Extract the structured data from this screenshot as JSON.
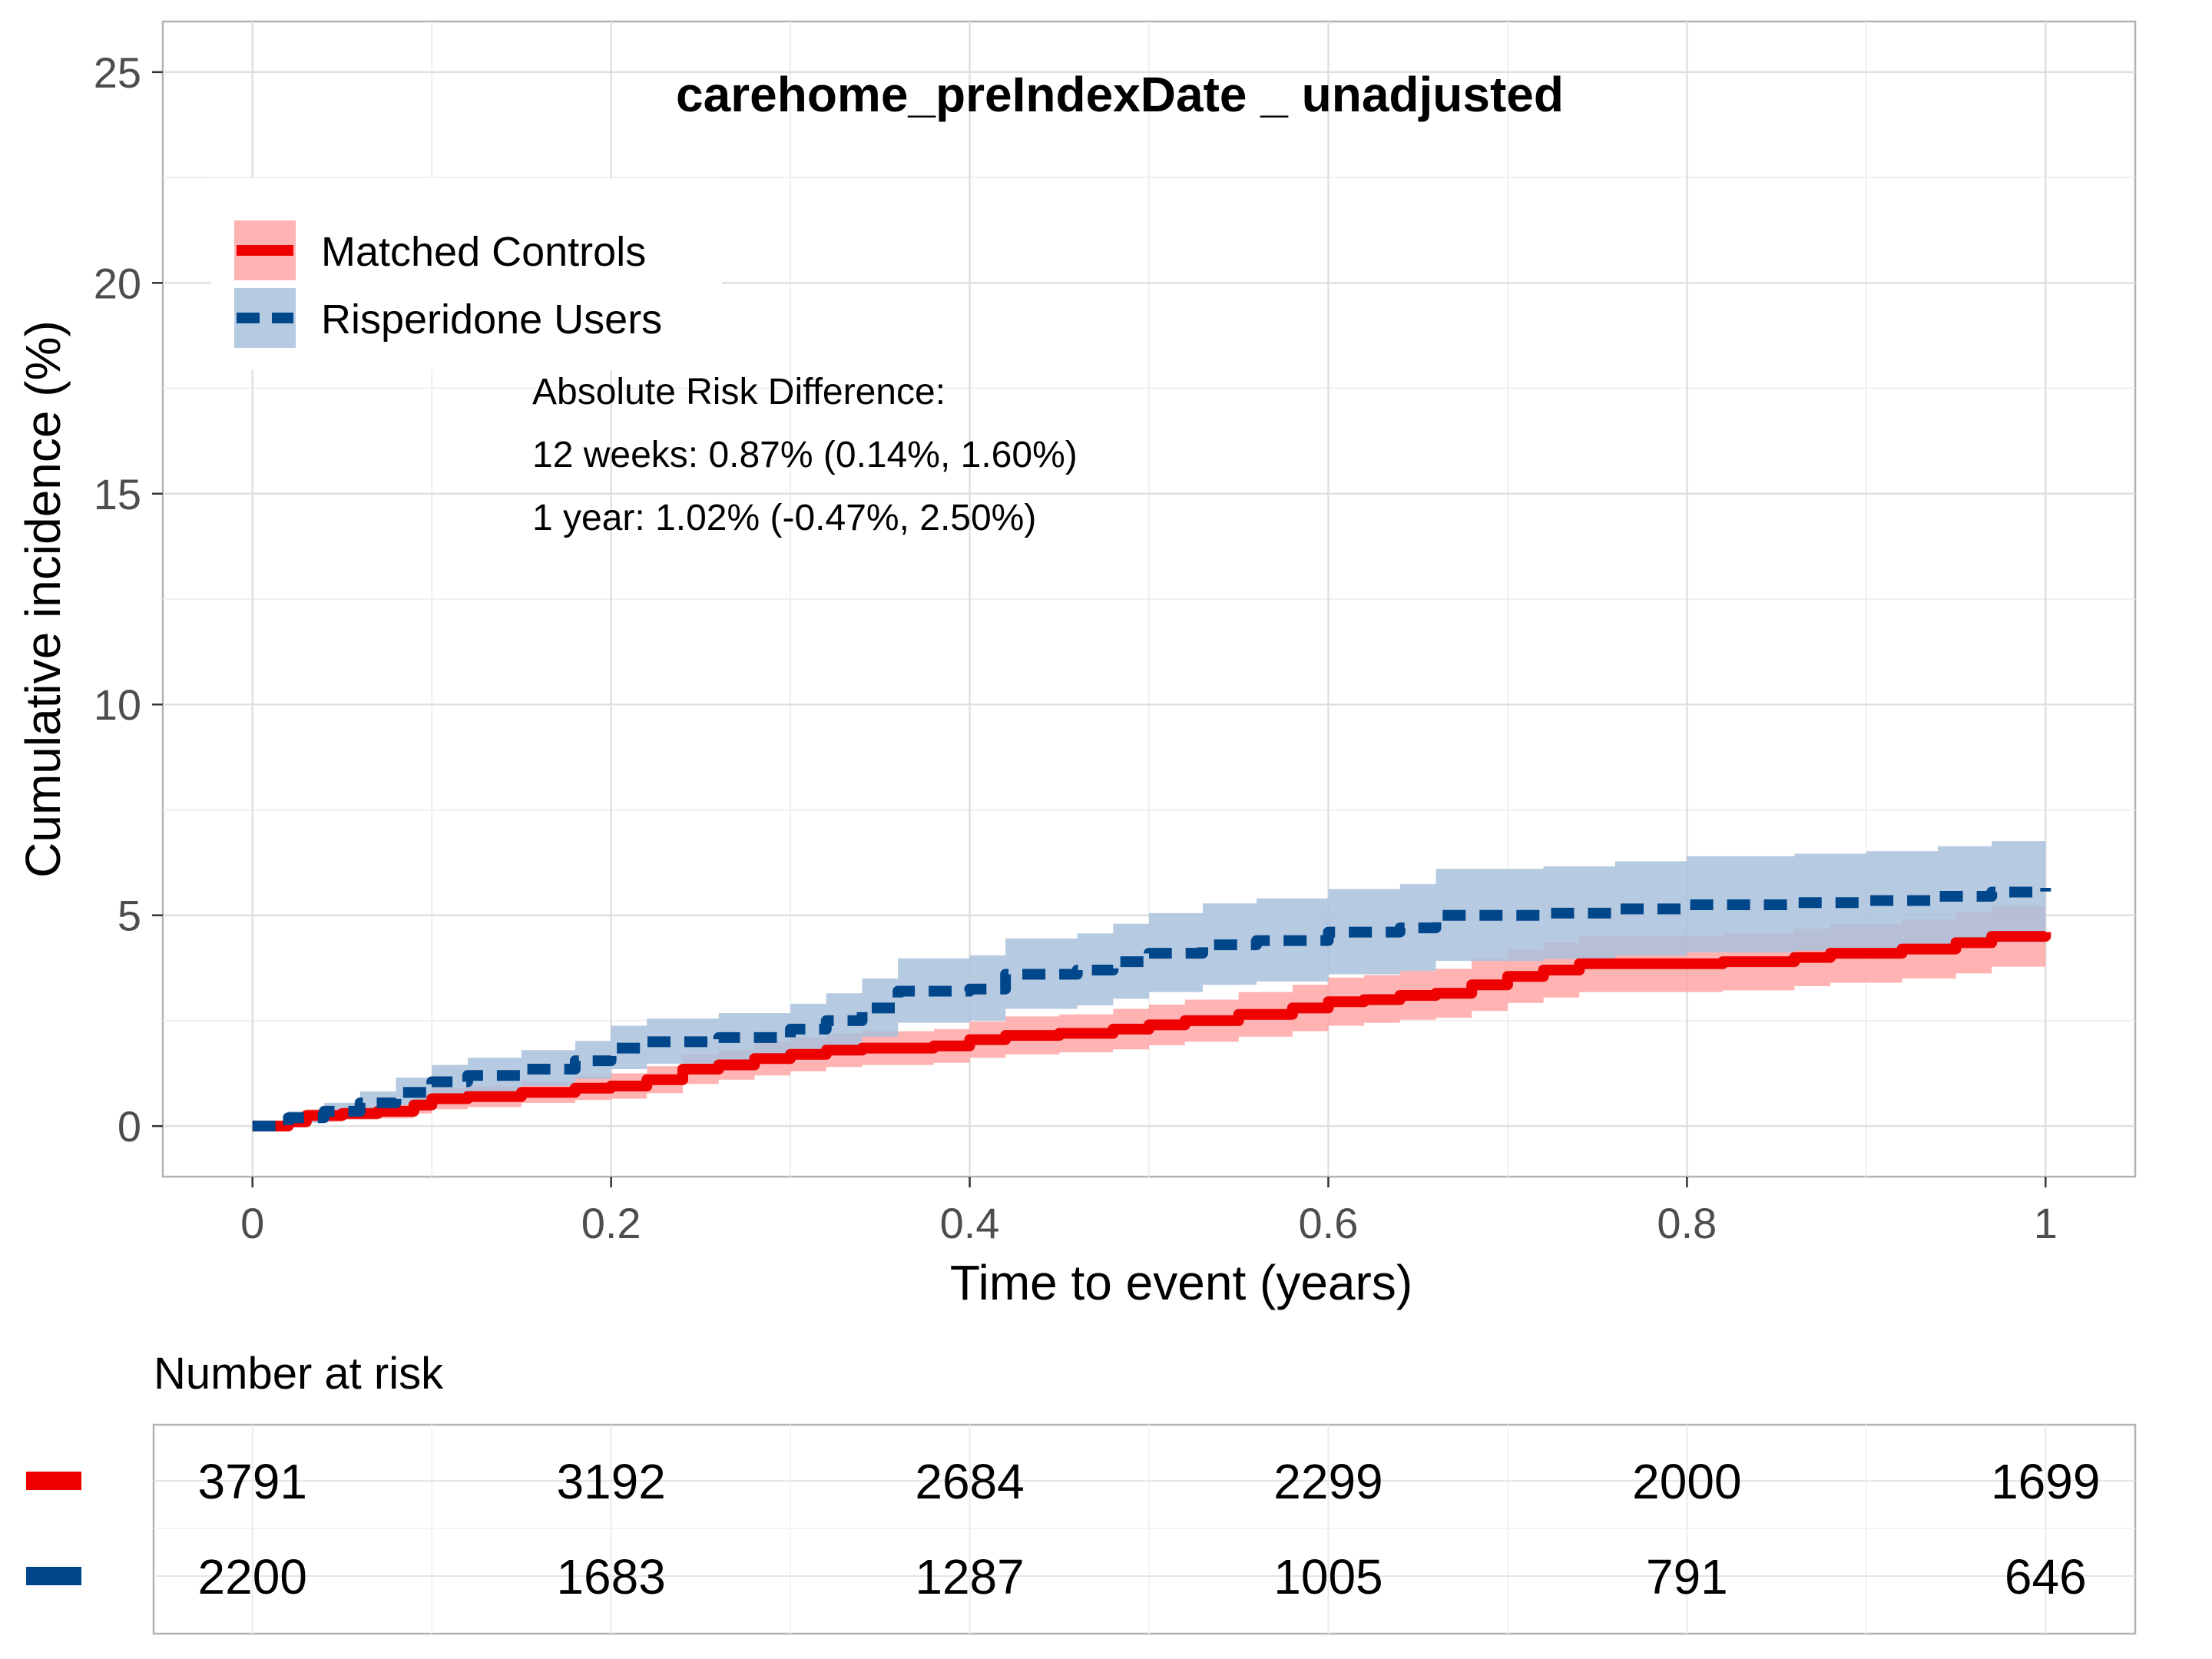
{
  "chart_data": {
    "type": "line",
    "title": "carehome_preIndexDate _ unadjusted",
    "xlabel": "Time to event (years)",
    "ylabel": "Cumulative incidence (%)",
    "xlim": [
      -0.05,
      1.05
    ],
    "ylim": [
      -1.2,
      26.2
    ],
    "x_ticks": [
      0,
      0.2,
      0.4,
      0.6,
      0.8,
      1
    ],
    "x_tick_labels": [
      "0",
      "0.2",
      "0.4",
      "0.6",
      "0.8",
      "1"
    ],
    "y_ticks": [
      0,
      5,
      10,
      15,
      20,
      25
    ],
    "y_tick_labels": [
      "0",
      "5",
      "10",
      "15",
      "20",
      "25"
    ],
    "grid": true,
    "legend_position": "top-left",
    "series": [
      {
        "name": "Matched Controls",
        "color": "#ee0000",
        "band_color": "#ff9999",
        "line_style": "solid",
        "points": [
          [
            0,
            0
          ],
          [
            0.02,
            0.1
          ],
          [
            0.03,
            0.25
          ],
          [
            0.05,
            0.3
          ],
          [
            0.07,
            0.35
          ],
          [
            0.09,
            0.5
          ],
          [
            0.1,
            0.65
          ],
          [
            0.12,
            0.7
          ],
          [
            0.15,
            0.8
          ],
          [
            0.18,
            0.9
          ],
          [
            0.2,
            0.95
          ],
          [
            0.22,
            1.1
          ],
          [
            0.24,
            1.35
          ],
          [
            0.26,
            1.45
          ],
          [
            0.28,
            1.6
          ],
          [
            0.3,
            1.7
          ],
          [
            0.32,
            1.8
          ],
          [
            0.34,
            1.85
          ],
          [
            0.38,
            1.9
          ],
          [
            0.4,
            2.05
          ],
          [
            0.42,
            2.15
          ],
          [
            0.45,
            2.2
          ],
          [
            0.48,
            2.3
          ],
          [
            0.5,
            2.4
          ],
          [
            0.52,
            2.5
          ],
          [
            0.55,
            2.65
          ],
          [
            0.58,
            2.8
          ],
          [
            0.6,
            2.95
          ],
          [
            0.62,
            3.0
          ],
          [
            0.64,
            3.1
          ],
          [
            0.66,
            3.15
          ],
          [
            0.68,
            3.35
          ],
          [
            0.7,
            3.55
          ],
          [
            0.72,
            3.7
          ],
          [
            0.74,
            3.85
          ],
          [
            0.78,
            3.85
          ],
          [
            0.82,
            3.9
          ],
          [
            0.86,
            4.0
          ],
          [
            0.88,
            4.1
          ],
          [
            0.92,
            4.2
          ],
          [
            0.95,
            4.35
          ],
          [
            0.97,
            4.5
          ],
          [
            1.0,
            4.6
          ]
        ],
        "lower": [
          [
            0,
            0
          ],
          [
            0.02,
            0.02
          ],
          [
            0.03,
            0.1
          ],
          [
            0.05,
            0.15
          ],
          [
            0.07,
            0.18
          ],
          [
            0.09,
            0.3
          ],
          [
            0.1,
            0.4
          ],
          [
            0.12,
            0.45
          ],
          [
            0.15,
            0.55
          ],
          [
            0.18,
            0.62
          ],
          [
            0.2,
            0.65
          ],
          [
            0.22,
            0.78
          ],
          [
            0.24,
            1.0
          ],
          [
            0.26,
            1.1
          ],
          [
            0.28,
            1.2
          ],
          [
            0.3,
            1.3
          ],
          [
            0.32,
            1.4
          ],
          [
            0.34,
            1.45
          ],
          [
            0.38,
            1.5
          ],
          [
            0.4,
            1.62
          ],
          [
            0.42,
            1.7
          ],
          [
            0.45,
            1.75
          ],
          [
            0.48,
            1.82
          ],
          [
            0.5,
            1.92
          ],
          [
            0.52,
            2.0
          ],
          [
            0.55,
            2.12
          ],
          [
            0.58,
            2.25
          ],
          [
            0.6,
            2.38
          ],
          [
            0.62,
            2.45
          ],
          [
            0.64,
            2.52
          ],
          [
            0.66,
            2.57
          ],
          [
            0.68,
            2.73
          ],
          [
            0.7,
            2.92
          ],
          [
            0.72,
            3.05
          ],
          [
            0.74,
            3.18
          ],
          [
            0.78,
            3.18
          ],
          [
            0.82,
            3.22
          ],
          [
            0.86,
            3.32
          ],
          [
            0.88,
            3.4
          ],
          [
            0.92,
            3.5
          ],
          [
            0.95,
            3.62
          ],
          [
            0.97,
            3.78
          ],
          [
            1.0,
            3.85
          ]
        ],
        "upper": [
          [
            0,
            0
          ],
          [
            0.02,
            0.2
          ],
          [
            0.03,
            0.4
          ],
          [
            0.05,
            0.45
          ],
          [
            0.07,
            0.52
          ],
          [
            0.09,
            0.7
          ],
          [
            0.1,
            0.9
          ],
          [
            0.12,
            0.95
          ],
          [
            0.15,
            1.05
          ],
          [
            0.18,
            1.18
          ],
          [
            0.2,
            1.25
          ],
          [
            0.22,
            1.42
          ],
          [
            0.24,
            1.7
          ],
          [
            0.26,
            1.8
          ],
          [
            0.28,
            2.0
          ],
          [
            0.3,
            2.1
          ],
          [
            0.32,
            2.2
          ],
          [
            0.34,
            2.25
          ],
          [
            0.38,
            2.3
          ],
          [
            0.4,
            2.48
          ],
          [
            0.42,
            2.6
          ],
          [
            0.45,
            2.65
          ],
          [
            0.48,
            2.78
          ],
          [
            0.5,
            2.88
          ],
          [
            0.52,
            3.0
          ],
          [
            0.55,
            3.18
          ],
          [
            0.58,
            3.35
          ],
          [
            0.6,
            3.52
          ],
          [
            0.62,
            3.58
          ],
          [
            0.64,
            3.68
          ],
          [
            0.66,
            3.73
          ],
          [
            0.68,
            3.97
          ],
          [
            0.7,
            4.18
          ],
          [
            0.72,
            4.35
          ],
          [
            0.74,
            4.52
          ],
          [
            0.78,
            4.52
          ],
          [
            0.82,
            4.58
          ],
          [
            0.86,
            4.68
          ],
          [
            0.88,
            4.8
          ],
          [
            0.92,
            4.9
          ],
          [
            0.95,
            5.08
          ],
          [
            0.97,
            5.22
          ],
          [
            1.0,
            5.35
          ]
        ]
      },
      {
        "name": "Risperidone Users",
        "color": "#00468b",
        "band_color": "#a9c1dc",
        "line_style": "dashed",
        "points": [
          [
            0,
            0
          ],
          [
            0.02,
            0.2
          ],
          [
            0.04,
            0.35
          ],
          [
            0.06,
            0.55
          ],
          [
            0.08,
            0.8
          ],
          [
            0.1,
            1.05
          ],
          [
            0.12,
            1.2
          ],
          [
            0.15,
            1.35
          ],
          [
            0.18,
            1.55
          ],
          [
            0.2,
            1.85
          ],
          [
            0.22,
            2.0
          ],
          [
            0.26,
            2.1
          ],
          [
            0.3,
            2.3
          ],
          [
            0.32,
            2.5
          ],
          [
            0.34,
            2.8
          ],
          [
            0.36,
            3.2
          ],
          [
            0.4,
            3.25
          ],
          [
            0.42,
            3.6
          ],
          [
            0.46,
            3.7
          ],
          [
            0.48,
            3.9
          ],
          [
            0.5,
            4.1
          ],
          [
            0.53,
            4.3
          ],
          [
            0.56,
            4.4
          ],
          [
            0.6,
            4.6
          ],
          [
            0.64,
            4.7
          ],
          [
            0.66,
            5.0
          ],
          [
            0.72,
            5.05
          ],
          [
            0.76,
            5.15
          ],
          [
            0.8,
            5.25
          ],
          [
            0.86,
            5.3
          ],
          [
            0.9,
            5.35
          ],
          [
            0.94,
            5.45
          ],
          [
            0.97,
            5.55
          ],
          [
            1.0,
            5.65
          ]
        ],
        "lower": [
          [
            0,
            0
          ],
          [
            0.02,
            0.08
          ],
          [
            0.04,
            0.18
          ],
          [
            0.06,
            0.32
          ],
          [
            0.08,
            0.5
          ],
          [
            0.1,
            0.7
          ],
          [
            0.12,
            0.82
          ],
          [
            0.15,
            0.95
          ],
          [
            0.18,
            1.12
          ],
          [
            0.2,
            1.35
          ],
          [
            0.22,
            1.48
          ],
          [
            0.26,
            1.56
          ],
          [
            0.3,
            1.72
          ],
          [
            0.32,
            1.88
          ],
          [
            0.34,
            2.12
          ],
          [
            0.36,
            2.45
          ],
          [
            0.4,
            2.5
          ],
          [
            0.42,
            2.78
          ],
          [
            0.46,
            2.86
          ],
          [
            0.48,
            3.02
          ],
          [
            0.5,
            3.18
          ],
          [
            0.53,
            3.35
          ],
          [
            0.56,
            3.43
          ],
          [
            0.6,
            3.6
          ],
          [
            0.64,
            3.68
          ],
          [
            0.66,
            3.92
          ],
          [
            0.72,
            3.96
          ],
          [
            0.76,
            4.04
          ],
          [
            0.8,
            4.12
          ],
          [
            0.86,
            4.16
          ],
          [
            0.9,
            4.2
          ],
          [
            0.94,
            4.28
          ],
          [
            0.97,
            4.36
          ],
          [
            1.0,
            4.45
          ]
        ],
        "upper": [
          [
            0,
            0
          ],
          [
            0.02,
            0.35
          ],
          [
            0.04,
            0.55
          ],
          [
            0.06,
            0.82
          ],
          [
            0.08,
            1.15
          ],
          [
            0.1,
            1.45
          ],
          [
            0.12,
            1.62
          ],
          [
            0.15,
            1.8
          ],
          [
            0.18,
            2.02
          ],
          [
            0.2,
            2.38
          ],
          [
            0.22,
            2.55
          ],
          [
            0.26,
            2.68
          ],
          [
            0.3,
            2.9
          ],
          [
            0.32,
            3.15
          ],
          [
            0.34,
            3.5
          ],
          [
            0.36,
            3.98
          ],
          [
            0.4,
            4.05
          ],
          [
            0.42,
            4.45
          ],
          [
            0.46,
            4.57
          ],
          [
            0.48,
            4.8
          ],
          [
            0.5,
            5.05
          ],
          [
            0.53,
            5.28
          ],
          [
            0.56,
            5.4
          ],
          [
            0.6,
            5.62
          ],
          [
            0.64,
            5.74
          ],
          [
            0.66,
            6.1
          ],
          [
            0.72,
            6.16
          ],
          [
            0.76,
            6.28
          ],
          [
            0.8,
            6.4
          ],
          [
            0.86,
            6.46
          ],
          [
            0.9,
            6.52
          ],
          [
            0.94,
            6.64
          ],
          [
            0.97,
            6.76
          ],
          [
            1.0,
            6.88
          ]
        ]
      }
    ],
    "annotation": [
      "Absolute Risk Difference:",
      "12 weeks: 0.87% (0.14%, 1.60%)",
      "1 year: 1.02% (-0.47%, 2.50%)"
    ],
    "risk_table": {
      "title": "Number at risk",
      "rows": [
        {
          "color": "#ee0000",
          "values": [
            "3791",
            "3192",
            "2684",
            "2299",
            "2000",
            "1699"
          ]
        },
        {
          "color": "#00468b",
          "values": [
            "2200",
            "1683",
            "1287",
            "1005",
            "791",
            "646"
          ]
        }
      ]
    }
  }
}
